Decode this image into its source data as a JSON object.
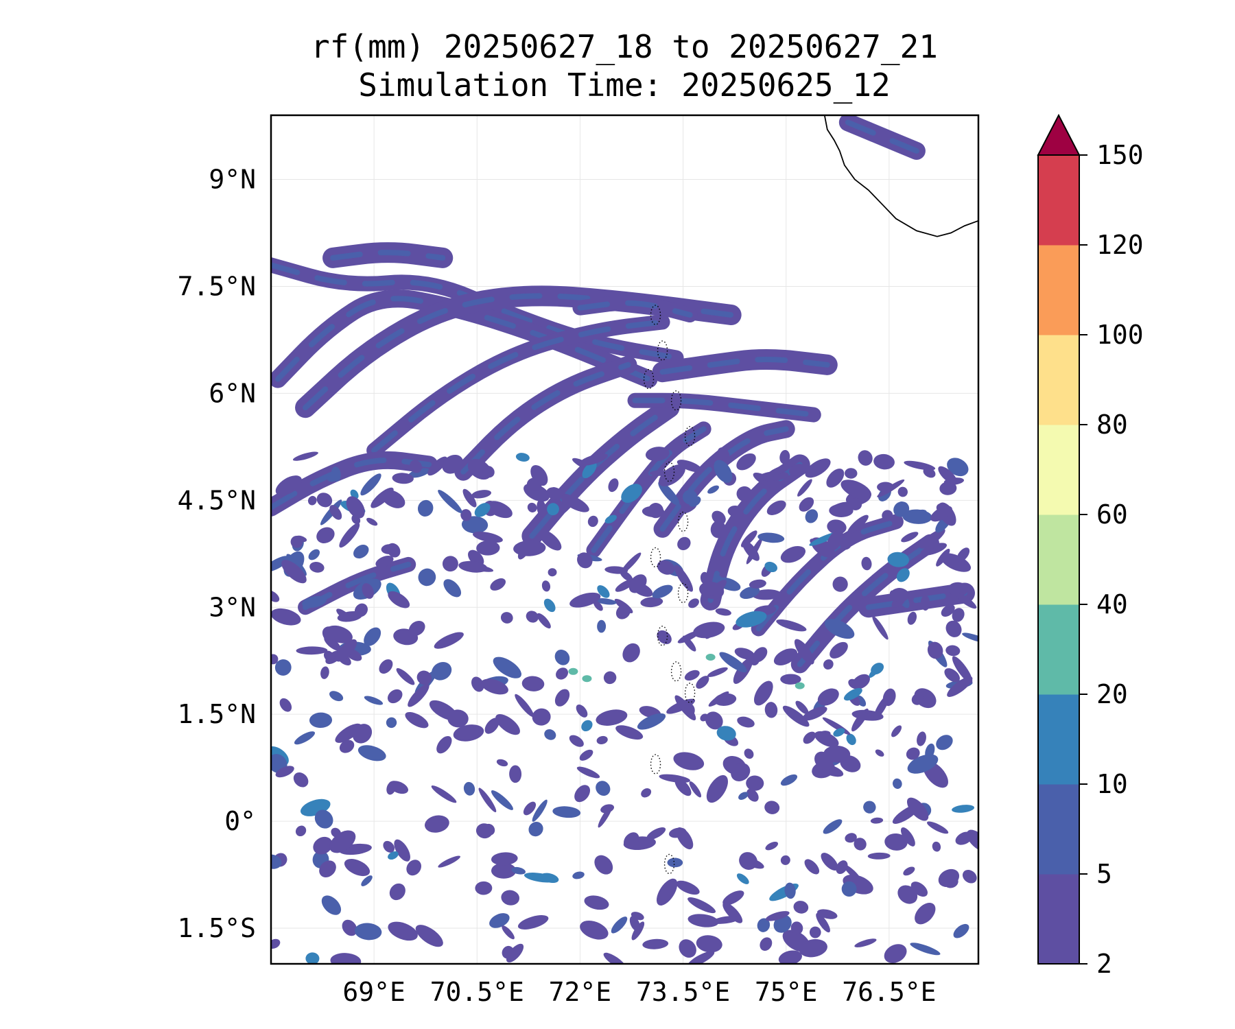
{
  "title": {
    "line1": "rf(mm) 20250627_18 to 20250627_21",
    "line2": "Simulation Time: 20250625_12"
  },
  "map": {
    "lon_range": [
      67.5,
      77.8
    ],
    "lat_range": [
      -2.0,
      9.9
    ],
    "x_tick_values": [
      69,
      70.5,
      72,
      73.5,
      75,
      76.5
    ],
    "x_tick_labels": [
      "69°E",
      "70.5°E",
      "72°E",
      "73.5°E",
      "75°E",
      "76.5°E"
    ],
    "y_tick_values": [
      9,
      7.5,
      6,
      4.5,
      3,
      1.5,
      0,
      -1.5
    ],
    "y_tick_labels": [
      "9°N",
      "7.5°N",
      "6°N",
      "4.5°N",
      "3°N",
      "1.5°N",
      "0°",
      "1.5°S"
    ],
    "grid": true,
    "coastline_color": "#000000",
    "background_color": "#ffffff"
  },
  "colorbar": {
    "levels": [
      2,
      5,
      10,
      20,
      40,
      60,
      80,
      100,
      120,
      150
    ],
    "tick_labels": [
      "2",
      "5",
      "10",
      "20",
      "40",
      "60",
      "80",
      "100",
      "120",
      "150"
    ],
    "colors": [
      "#5e4fa2",
      "#4a60ab",
      "#3682ba",
      "#5fbaa8",
      "#bfe5a0",
      "#f4fab0",
      "#fee08b",
      "#fa9c58",
      "#d53e4f"
    ],
    "extend_color": "#9e0142",
    "extend": "max"
  },
  "rain_field": {
    "dominant_class": "2-5 mm",
    "peak_class": "20-40 mm",
    "bands": [
      [
        [
          67.5,
          7.8
        ],
        [
          68.6,
          7.5
        ],
        [
          69.8,
          7.6
        ],
        [
          71.0,
          7.1
        ],
        [
          72.2,
          6.7
        ],
        [
          73.4,
          6.5
        ]
      ],
      [
        [
          67.6,
          6.2
        ],
        [
          68.3,
          6.9
        ],
        [
          69.1,
          7.4
        ],
        [
          70.2,
          7.2
        ],
        [
          71.5,
          6.8
        ],
        [
          73.0,
          6.2
        ]
      ],
      [
        [
          68.0,
          5.8
        ],
        [
          68.9,
          6.6
        ],
        [
          70.0,
          7.2
        ],
        [
          71.2,
          7.4
        ],
        [
          72.6,
          7.3
        ],
        [
          74.2,
          7.1
        ]
      ],
      [
        [
          69.0,
          5.2
        ],
        [
          70.0,
          6.0
        ],
        [
          71.1,
          6.6
        ],
        [
          72.3,
          6.9
        ],
        [
          73.2,
          7.0
        ]
      ],
      [
        [
          70.3,
          4.9
        ],
        [
          71.0,
          5.6
        ],
        [
          71.8,
          6.1
        ],
        [
          72.7,
          6.4
        ]
      ],
      [
        [
          71.3,
          4.0
        ],
        [
          72.0,
          4.8
        ],
        [
          72.7,
          5.4
        ],
        [
          73.3,
          5.8
        ]
      ],
      [
        [
          72.2,
          3.8
        ],
        [
          72.8,
          4.6
        ],
        [
          73.3,
          5.2
        ],
        [
          73.8,
          5.5
        ]
      ],
      [
        [
          73.2,
          4.1
        ],
        [
          73.8,
          4.9
        ],
        [
          74.5,
          5.4
        ],
        [
          75.0,
          5.5
        ]
      ],
      [
        [
          73.9,
          3.1
        ],
        [
          74.1,
          3.9
        ],
        [
          74.6,
          4.6
        ],
        [
          75.2,
          5.0
        ]
      ],
      [
        [
          74.6,
          2.7
        ],
        [
          75.2,
          3.4
        ],
        [
          75.9,
          4.0
        ],
        [
          76.6,
          4.2
        ]
      ],
      [
        [
          75.2,
          2.2
        ],
        [
          75.8,
          2.9
        ],
        [
          76.5,
          3.5
        ],
        [
          77.1,
          3.9
        ]
      ],
      [
        [
          73.2,
          6.3
        ],
        [
          73.9,
          6.4
        ],
        [
          74.7,
          6.5
        ],
        [
          75.6,
          6.4
        ]
      ],
      [
        [
          72.8,
          5.9
        ],
        [
          73.6,
          5.9
        ],
        [
          74.5,
          5.8
        ],
        [
          75.4,
          5.7
        ]
      ],
      [
        [
          67.5,
          4.4
        ],
        [
          68.2,
          4.8
        ],
        [
          69.0,
          5.1
        ],
        [
          69.8,
          5.0
        ]
      ],
      [
        [
          76.2,
          3.0
        ],
        [
          76.9,
          3.1
        ],
        [
          77.6,
          3.2
        ]
      ],
      [
        [
          68.0,
          3.0
        ],
        [
          68.8,
          3.4
        ],
        [
          69.5,
          3.6
        ]
      ],
      [
        [
          75.9,
          9.8
        ],
        [
          76.4,
          9.6
        ],
        [
          76.9,
          9.4
        ]
      ],
      [
        [
          68.4,
          7.9
        ],
        [
          69.2,
          8.0
        ],
        [
          70.0,
          7.9
        ]
      ],
      [
        [
          72.0,
          7.2
        ],
        [
          72.8,
          7.3
        ],
        [
          73.6,
          7.1
        ]
      ]
    ],
    "peak_points": [
      [
        71.9,
        2.1
      ],
      [
        72.1,
        2.0
      ],
      [
        73.9,
        2.3
      ],
      [
        75.2,
        1.9
      ]
    ]
  }
}
